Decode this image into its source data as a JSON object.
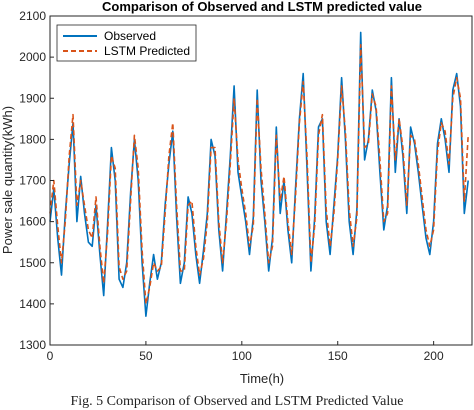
{
  "chart_data": {
    "type": "line",
    "title": "Comparison of Observed and LSTM predicted value",
    "xlabel": "Time(h)",
    "ylabel": "Power sale quantity(kWh)",
    "xlim": [
      0,
      220
    ],
    "ylim": [
      1300,
      2100
    ],
    "xticks": [
      0,
      50,
      100,
      150,
      200
    ],
    "yticks": [
      1300,
      1400,
      1500,
      1600,
      1700,
      1800,
      1900,
      2000,
      2100
    ],
    "grid": false,
    "legend_position": "top-left",
    "series": [
      {
        "name": "Observed",
        "style": "solid",
        "color": "#0072bd",
        "x": [
          0,
          2,
          4,
          6,
          8,
          10,
          12,
          14,
          16,
          18,
          20,
          22,
          24,
          26,
          28,
          30,
          32,
          34,
          36,
          38,
          40,
          42,
          44,
          46,
          48,
          50,
          52,
          54,
          56,
          58,
          60,
          62,
          64,
          66,
          68,
          70,
          72,
          74,
          76,
          78,
          80,
          82,
          84,
          86,
          88,
          90,
          92,
          94,
          96,
          98,
          100,
          102,
          104,
          106,
          108,
          110,
          112,
          114,
          116,
          118,
          120,
          122,
          124,
          126,
          128,
          130,
          132,
          134,
          136,
          138,
          140,
          142,
          144,
          146,
          148,
          150,
          152,
          154,
          156,
          158,
          160,
          162,
          164,
          166,
          168,
          170,
          172,
          174,
          176,
          178,
          180,
          182,
          184,
          186,
          188,
          190,
          192,
          194,
          196,
          198,
          200,
          202,
          204,
          206,
          208,
          210,
          212,
          214,
          216,
          218
        ],
        "y": [
          1600,
          1680,
          1560,
          1470,
          1620,
          1740,
          1840,
          1600,
          1710,
          1620,
          1550,
          1540,
          1640,
          1520,
          1420,
          1590,
          1780,
          1700,
          1460,
          1440,
          1500,
          1670,
          1800,
          1700,
          1500,
          1370,
          1450,
          1520,
          1460,
          1500,
          1640,
          1740,
          1820,
          1610,
          1450,
          1500,
          1660,
          1620,
          1520,
          1450,
          1530,
          1620,
          1800,
          1760,
          1580,
          1480,
          1620,
          1760,
          1930,
          1720,
          1660,
          1600,
          1520,
          1610,
          1920,
          1700,
          1600,
          1480,
          1560,
          1830,
          1620,
          1700,
          1580,
          1500,
          1680,
          1850,
          1960,
          1730,
          1480,
          1610,
          1830,
          1850,
          1600,
          1520,
          1640,
          1760,
          1950,
          1800,
          1600,
          1520,
          1630,
          2060,
          1750,
          1800,
          1920,
          1870,
          1720,
          1580,
          1640,
          1950,
          1720,
          1850,
          1760,
          1620,
          1830,
          1790,
          1720,
          1640,
          1560,
          1520,
          1600,
          1790,
          1850,
          1800,
          1720,
          1920,
          1960,
          1880,
          1620,
          1700
        ]
      },
      {
        "name": "LSTM Predicted",
        "style": "dashed",
        "color": "#d95319",
        "x": [
          0,
          2,
          4,
          6,
          8,
          10,
          12,
          14,
          16,
          18,
          20,
          22,
          24,
          26,
          28,
          30,
          32,
          34,
          36,
          38,
          40,
          42,
          44,
          46,
          48,
          50,
          52,
          54,
          56,
          58,
          60,
          62,
          64,
          66,
          68,
          70,
          72,
          74,
          76,
          78,
          80,
          82,
          84,
          86,
          88,
          90,
          92,
          94,
          96,
          98,
          100,
          102,
          104,
          106,
          108,
          110,
          112,
          114,
          116,
          118,
          120,
          122,
          124,
          126,
          128,
          130,
          132,
          134,
          136,
          138,
          140,
          142,
          144,
          146,
          148,
          150,
          152,
          154,
          156,
          158,
          160,
          162,
          164,
          166,
          168,
          170,
          172,
          174,
          176,
          178,
          180,
          182,
          184,
          186,
          188,
          190,
          192,
          194,
          196,
          198,
          200,
          202,
          204,
          206,
          208,
          210,
          212,
          214,
          216,
          218
        ],
        "y": [
          1620,
          1700,
          1590,
          1500,
          1600,
          1760,
          1860,
          1640,
          1700,
          1640,
          1580,
          1560,
          1660,
          1540,
          1450,
          1570,
          1760,
          1730,
          1490,
          1460,
          1480,
          1650,
          1810,
          1730,
          1530,
          1400,
          1440,
          1500,
          1480,
          1490,
          1620,
          1760,
          1840,
          1640,
          1480,
          1480,
          1640,
          1650,
          1540,
          1470,
          1510,
          1600,
          1780,
          1780,
          1600,
          1500,
          1600,
          1740,
          1900,
          1750,
          1680,
          1620,
          1540,
          1590,
          1900,
          1730,
          1620,
          1500,
          1540,
          1810,
          1650,
          1710,
          1600,
          1520,
          1660,
          1840,
          1940,
          1760,
          1500,
          1590,
          1810,
          1860,
          1630,
          1540,
          1620,
          1750,
          1930,
          1820,
          1630,
          1540,
          1610,
          2030,
          1780,
          1790,
          1910,
          1880,
          1750,
          1600,
          1620,
          1930,
          1750,
          1850,
          1780,
          1640,
          1810,
          1800,
          1740,
          1660,
          1580,
          1540,
          1580,
          1770,
          1840,
          1820,
          1740,
          1900,
          1950,
          1900,
          1650,
          1810
        ]
      }
    ]
  },
  "caption": "Fig. 5    Comparison of Observed and LSTM Predicted Value"
}
